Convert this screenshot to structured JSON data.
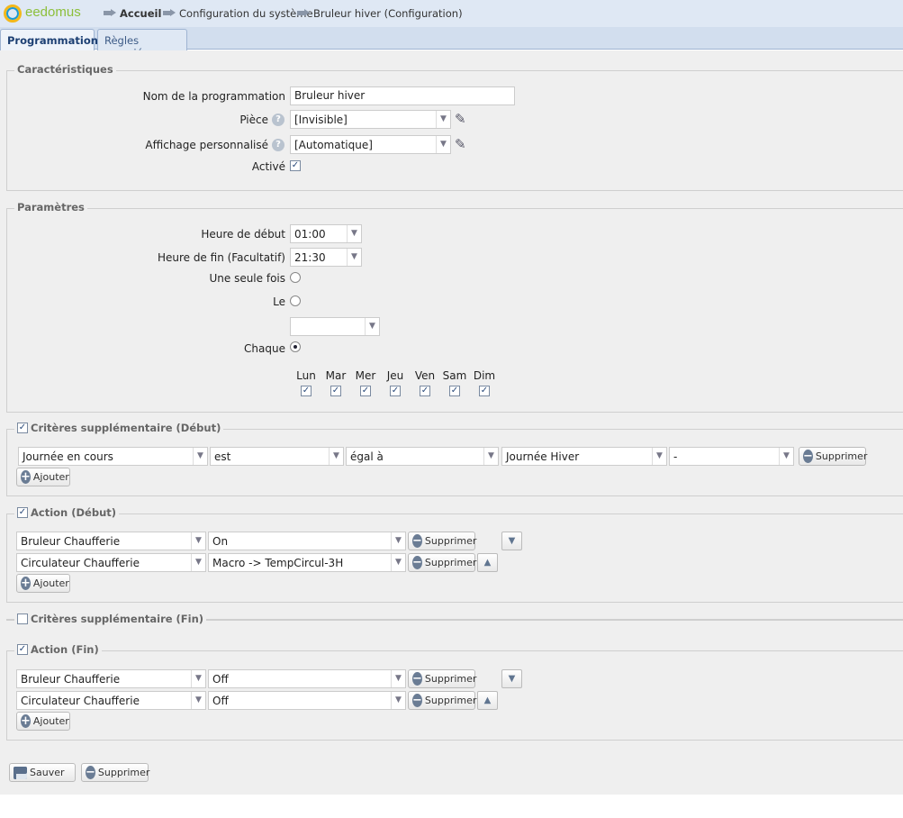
{
  "header": {
    "logo": "eedomus",
    "breadcrumb": [
      "Accueil",
      "Configuration du système",
      "Bruleur hiver (Configuration)"
    ]
  },
  "tabs": [
    {
      "label": "Programmation",
      "active": true
    },
    {
      "label": "Règles associées",
      "active": false
    }
  ],
  "caracteristiques": {
    "legend": "Caractéristiques",
    "nom_label": "Nom de la programmation",
    "nom_value": "Bruleur hiver",
    "piece_label": "Pièce",
    "piece_value": "[Invisible]",
    "affichage_label": "Affichage personnalisé",
    "affichage_value": "[Automatique]",
    "active_label": "Activé",
    "active": true
  },
  "parametres": {
    "legend": "Paramètres",
    "debut_label": "Heure de début",
    "debut_value": "01:00",
    "fin_label": "Heure de fin (Facultatif)",
    "fin_value": "21:30",
    "une_fois_label": "Une seule fois",
    "le_label": "Le",
    "le_value": "",
    "chaque_label": "Chaque",
    "selected": "Chaque",
    "days": [
      {
        "label": "Lun",
        "checked": true
      },
      {
        "label": "Mar",
        "checked": true
      },
      {
        "label": "Mer",
        "checked": true
      },
      {
        "label": "Jeu",
        "checked": true
      },
      {
        "label": "Ven",
        "checked": true
      },
      {
        "label": "Sam",
        "checked": true
      },
      {
        "label": "Dim",
        "checked": true
      }
    ]
  },
  "criteres_debut": {
    "legend": "Critères supplémentaire (Début)",
    "checked": true,
    "row": [
      "Journée en cours",
      "est",
      "égal à",
      "Journée Hiver",
      "-"
    ]
  },
  "action_debut": {
    "legend": "Action (Début)",
    "checked": true,
    "rows": [
      [
        "Bruleur Chaufferie",
        "On"
      ],
      [
        "Circulateur Chaufferie",
        "Macro -> TempCircul-3H"
      ]
    ]
  },
  "criteres_fin": {
    "legend": "Critères supplémentaire (Fin)",
    "checked": false
  },
  "action_fin": {
    "legend": "Action (Fin)",
    "checked": true,
    "rows": [
      [
        "Bruleur Chaufferie",
        "Off"
      ],
      [
        "Circulateur Chaufferie",
        "Off"
      ]
    ]
  },
  "buttons": {
    "supprimer": "Supprimer",
    "ajouter": "Ajouter",
    "sauver": "Sauver"
  },
  "colors": {
    "header_bg": "#dfe8f4",
    "tab_active_text": "#1c3f73",
    "panel_bg": "#efefef"
  }
}
